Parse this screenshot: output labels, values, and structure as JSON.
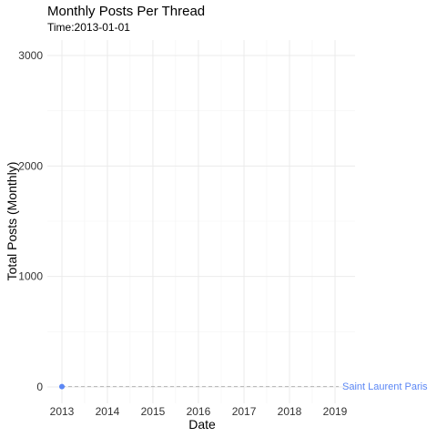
{
  "chart_data": {
    "type": "line",
    "title": "Monthly Posts Per Thread",
    "subtitle": "Time:2013-01-01",
    "xlabel": "Date",
    "ylabel": "Total Posts (Monthly)",
    "xlim": [
      "2013-01-01",
      "2019-06-01"
    ],
    "ylim": [
      0,
      3000
    ],
    "x_ticks": [
      "2013",
      "2014",
      "2015",
      "2016",
      "2017",
      "2018",
      "2019"
    ],
    "y_ticks": [
      0,
      1000,
      2000,
      3000
    ],
    "grid": true,
    "series": [
      {
        "name": "Saint Laurent Paris",
        "color": "#5b87f5",
        "points": [
          {
            "x": "2013-01-01",
            "y": 3
          }
        ]
      }
    ]
  }
}
